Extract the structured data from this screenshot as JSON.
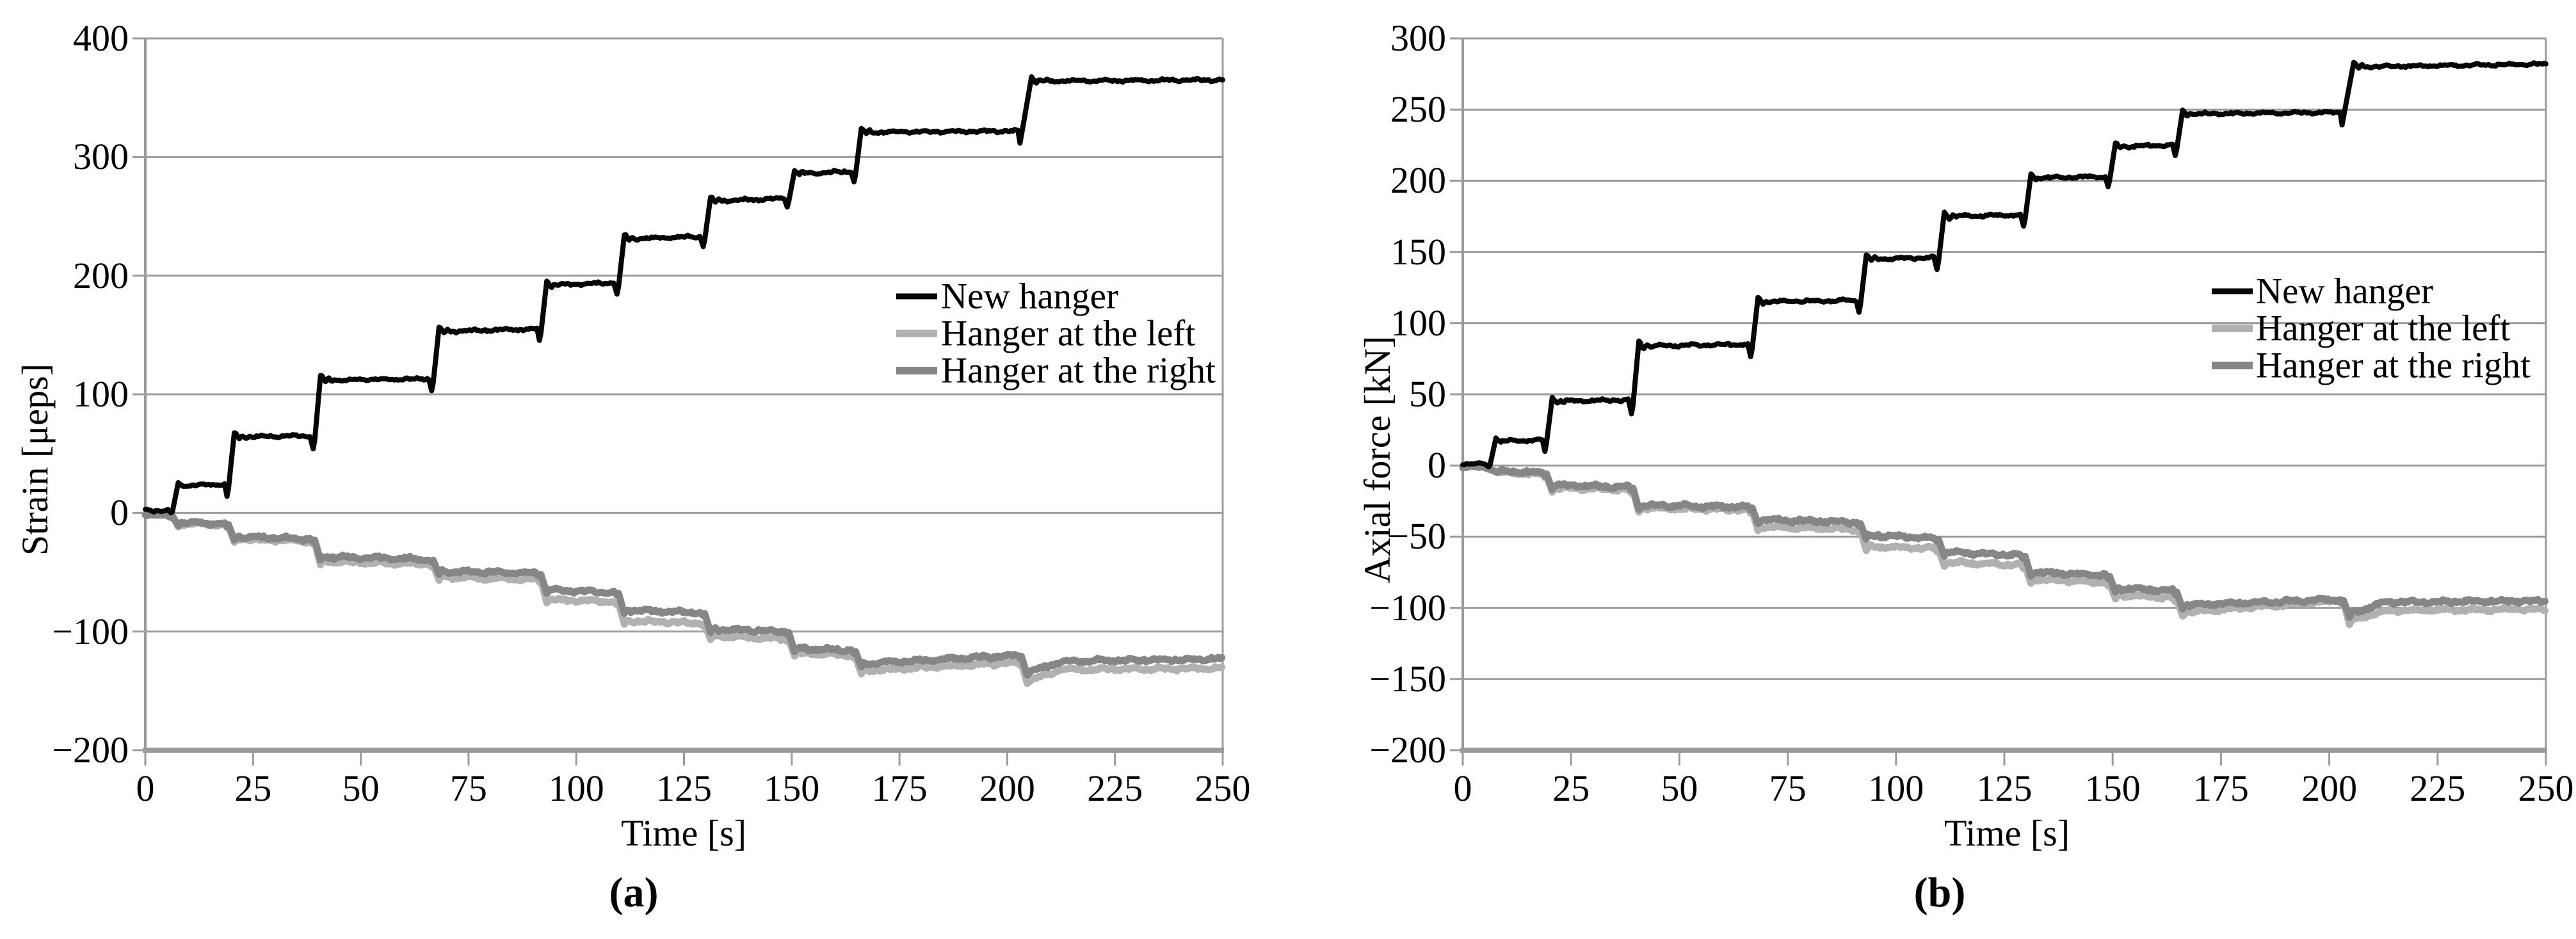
{
  "figure": {
    "description": "Two-panel step-load time history line charts",
    "panels": [
      "a",
      "b"
    ]
  },
  "styles": {
    "background": "#FFFFFF",
    "grid_color": "#9B9B9B",
    "axis_color": "#9B9B9B",
    "text_color": "#000000",
    "series_colors": [
      "#060606",
      "#B1B1B1",
      "#868686"
    ]
  },
  "chart_data": [
    {
      "type": "line",
      "panel": "a",
      "caption": "(a)",
      "xlabel": "Time [s]",
      "ylabel": "Strain [μeps]",
      "xlim": [
        0,
        250
      ],
      "ylim": [
        -200,
        400
      ],
      "xticks": [
        "0",
        "25",
        "50",
        "75",
        "100",
        "125",
        "150",
        "175",
        "200",
        "225",
        "250"
      ],
      "ytick_labels": [
        "400",
        "300",
        "200",
        "100",
        "0",
        "−100",
        "−200"
      ],
      "grid": "horizontal",
      "legend_position": "inside-right",
      "legend_entries": [
        "New hanger",
        "Hanger at the left",
        "Hanger at the right"
      ],
      "series": [
        {
          "name": "New hanger",
          "color_key": 0,
          "steps": [
            [
              0,
              5.5,
              2,
              2
            ],
            [
              8,
              18.5,
              23,
              24
            ],
            [
              21,
              38.5,
              64,
              65
            ],
            [
              41,
              66,
              112,
              113
            ],
            [
              68.5,
              91,
              153,
              155
            ],
            [
              93.5,
              109,
              192,
              194
            ],
            [
              111.5,
              129,
              231,
              233
            ],
            [
              131.5,
              148.5,
              263,
              265
            ],
            [
              151,
              164,
              286,
              288
            ],
            [
              166.5,
              202.5,
              321,
              322
            ],
            [
              206,
              250,
              364,
              365
            ]
          ]
        },
        {
          "name": "Hanger at the left",
          "color_key": 1,
          "steps": [
            [
              0,
              5.5,
              -1,
              -2
            ],
            [
              8,
              18.5,
              -9,
              -10
            ],
            [
              21,
              38.5,
              -22,
              -24
            ],
            [
              41,
              66,
              -41,
              -43
            ],
            [
              68.5,
              91,
              -54,
              -56
            ],
            [
              93.5,
              109,
              -73,
              -75
            ],
            [
              111.5,
              129,
              -91,
              -93
            ],
            [
              131.5,
              148.5,
              -104,
              -106
            ],
            [
              151,
              164,
              -118,
              -120
            ],
            [
              166.5,
              202.5,
              -133,
              -126
            ],
            [
              205,
              212,
              -141,
              -133
            ],
            [
              213,
              250,
              -132,
              -131
            ]
          ]
        },
        {
          "name": "Hanger at the right",
          "color_key": 2,
          "steps": [
            [
              0,
              5.5,
              -1,
              -2
            ],
            [
              8,
              18.5,
              -8,
              -9
            ],
            [
              21,
              38.5,
              -20,
              -22
            ],
            [
              41,
              66,
              -37,
              -39
            ],
            [
              68.5,
              91,
              -49,
              -51
            ],
            [
              93.5,
              109,
              -65,
              -67
            ],
            [
              111.5,
              129,
              -82,
              -84
            ],
            [
              131.5,
              148.5,
              -98,
              -100
            ],
            [
              151,
              164,
              -114,
              -116
            ],
            [
              166.5,
              202.5,
              -127,
              -120
            ],
            [
              205,
              212,
              -134,
              -126
            ],
            [
              213,
              250,
              -125,
              -123
            ]
          ]
        }
      ]
    },
    {
      "type": "line",
      "panel": "b",
      "caption": "(b)",
      "xlabel": "Time [s]",
      "ylabel": "Axial force [kN]",
      "xlim": [
        0,
        250
      ],
      "ylim": [
        -200,
        300
      ],
      "xticks": [
        "0",
        "25",
        "50",
        "75",
        "100",
        "125",
        "150",
        "175",
        "200",
        "225",
        "250"
      ],
      "ytick_labels": [
        "300",
        "250",
        "200",
        "150",
        "100",
        "50",
        "0",
        "−50",
        "−100",
        "−150",
        "−200"
      ],
      "grid": "horizontal",
      "legend_position": "inside-right",
      "legend_entries": [
        "New hanger",
        "Hanger at the left",
        "Hanger at the right"
      ],
      "series": [
        {
          "name": "New hanger",
          "color_key": 0,
          "steps": [
            [
              0,
              5.5,
              1,
              1
            ],
            [
              8,
              18.5,
              17,
              18
            ],
            [
              21,
              38.5,
              45,
              46
            ],
            [
              41,
              66,
              84,
              85
            ],
            [
              68.5,
              91,
              115,
              116
            ],
            [
              93.5,
              109,
              145,
              146
            ],
            [
              111.5,
              129,
              175,
              176
            ],
            [
              131.5,
              148.5,
              202,
              203
            ],
            [
              151,
              164,
              224,
              225
            ],
            [
              166.5,
              202.5,
              247,
              248
            ],
            [
              206,
              250,
              280,
              282
            ]
          ]
        },
        {
          "name": "Hanger at the left",
          "color_key": 1,
          "steps": [
            [
              0,
              5.5,
              -1,
              -1
            ],
            [
              8,
              18.5,
              -5,
              -6
            ],
            [
              21,
              38.5,
              -16,
              -17
            ],
            [
              41,
              66,
              -30,
              -31
            ],
            [
              68.5,
              91,
              -43,
              -45
            ],
            [
              93.5,
              109,
              -57,
              -58
            ],
            [
              111.5,
              129,
              -68,
              -70
            ],
            [
              131.5,
              148.5,
              -80,
              -82
            ],
            [
              151,
              164,
              -91,
              -93
            ],
            [
              166.5,
              202.5,
              -103,
              -95
            ],
            [
              205,
              212,
              -109,
              -103
            ],
            [
              213,
              250,
              -102,
              -101
            ]
          ]
        },
        {
          "name": "Hanger at the right",
          "color_key": 2,
          "steps": [
            [
              0,
              5.5,
              -1,
              -1
            ],
            [
              8,
              18.5,
              -4,
              -5
            ],
            [
              21,
              38.5,
              -14,
              -15
            ],
            [
              41,
              66,
              -28,
              -29
            ],
            [
              68.5,
              91,
              -38,
              -40
            ],
            [
              93.5,
              109,
              -49,
              -51
            ],
            [
              111.5,
              129,
              -61,
              -63
            ],
            [
              131.5,
              148.5,
              -75,
              -77
            ],
            [
              151,
              164,
              -86,
              -88
            ],
            [
              166.5,
              202.5,
              -98,
              -94
            ],
            [
              205,
              212,
              -104,
              -97
            ],
            [
              213,
              250,
              -96,
              -95
            ]
          ]
        }
      ]
    }
  ]
}
